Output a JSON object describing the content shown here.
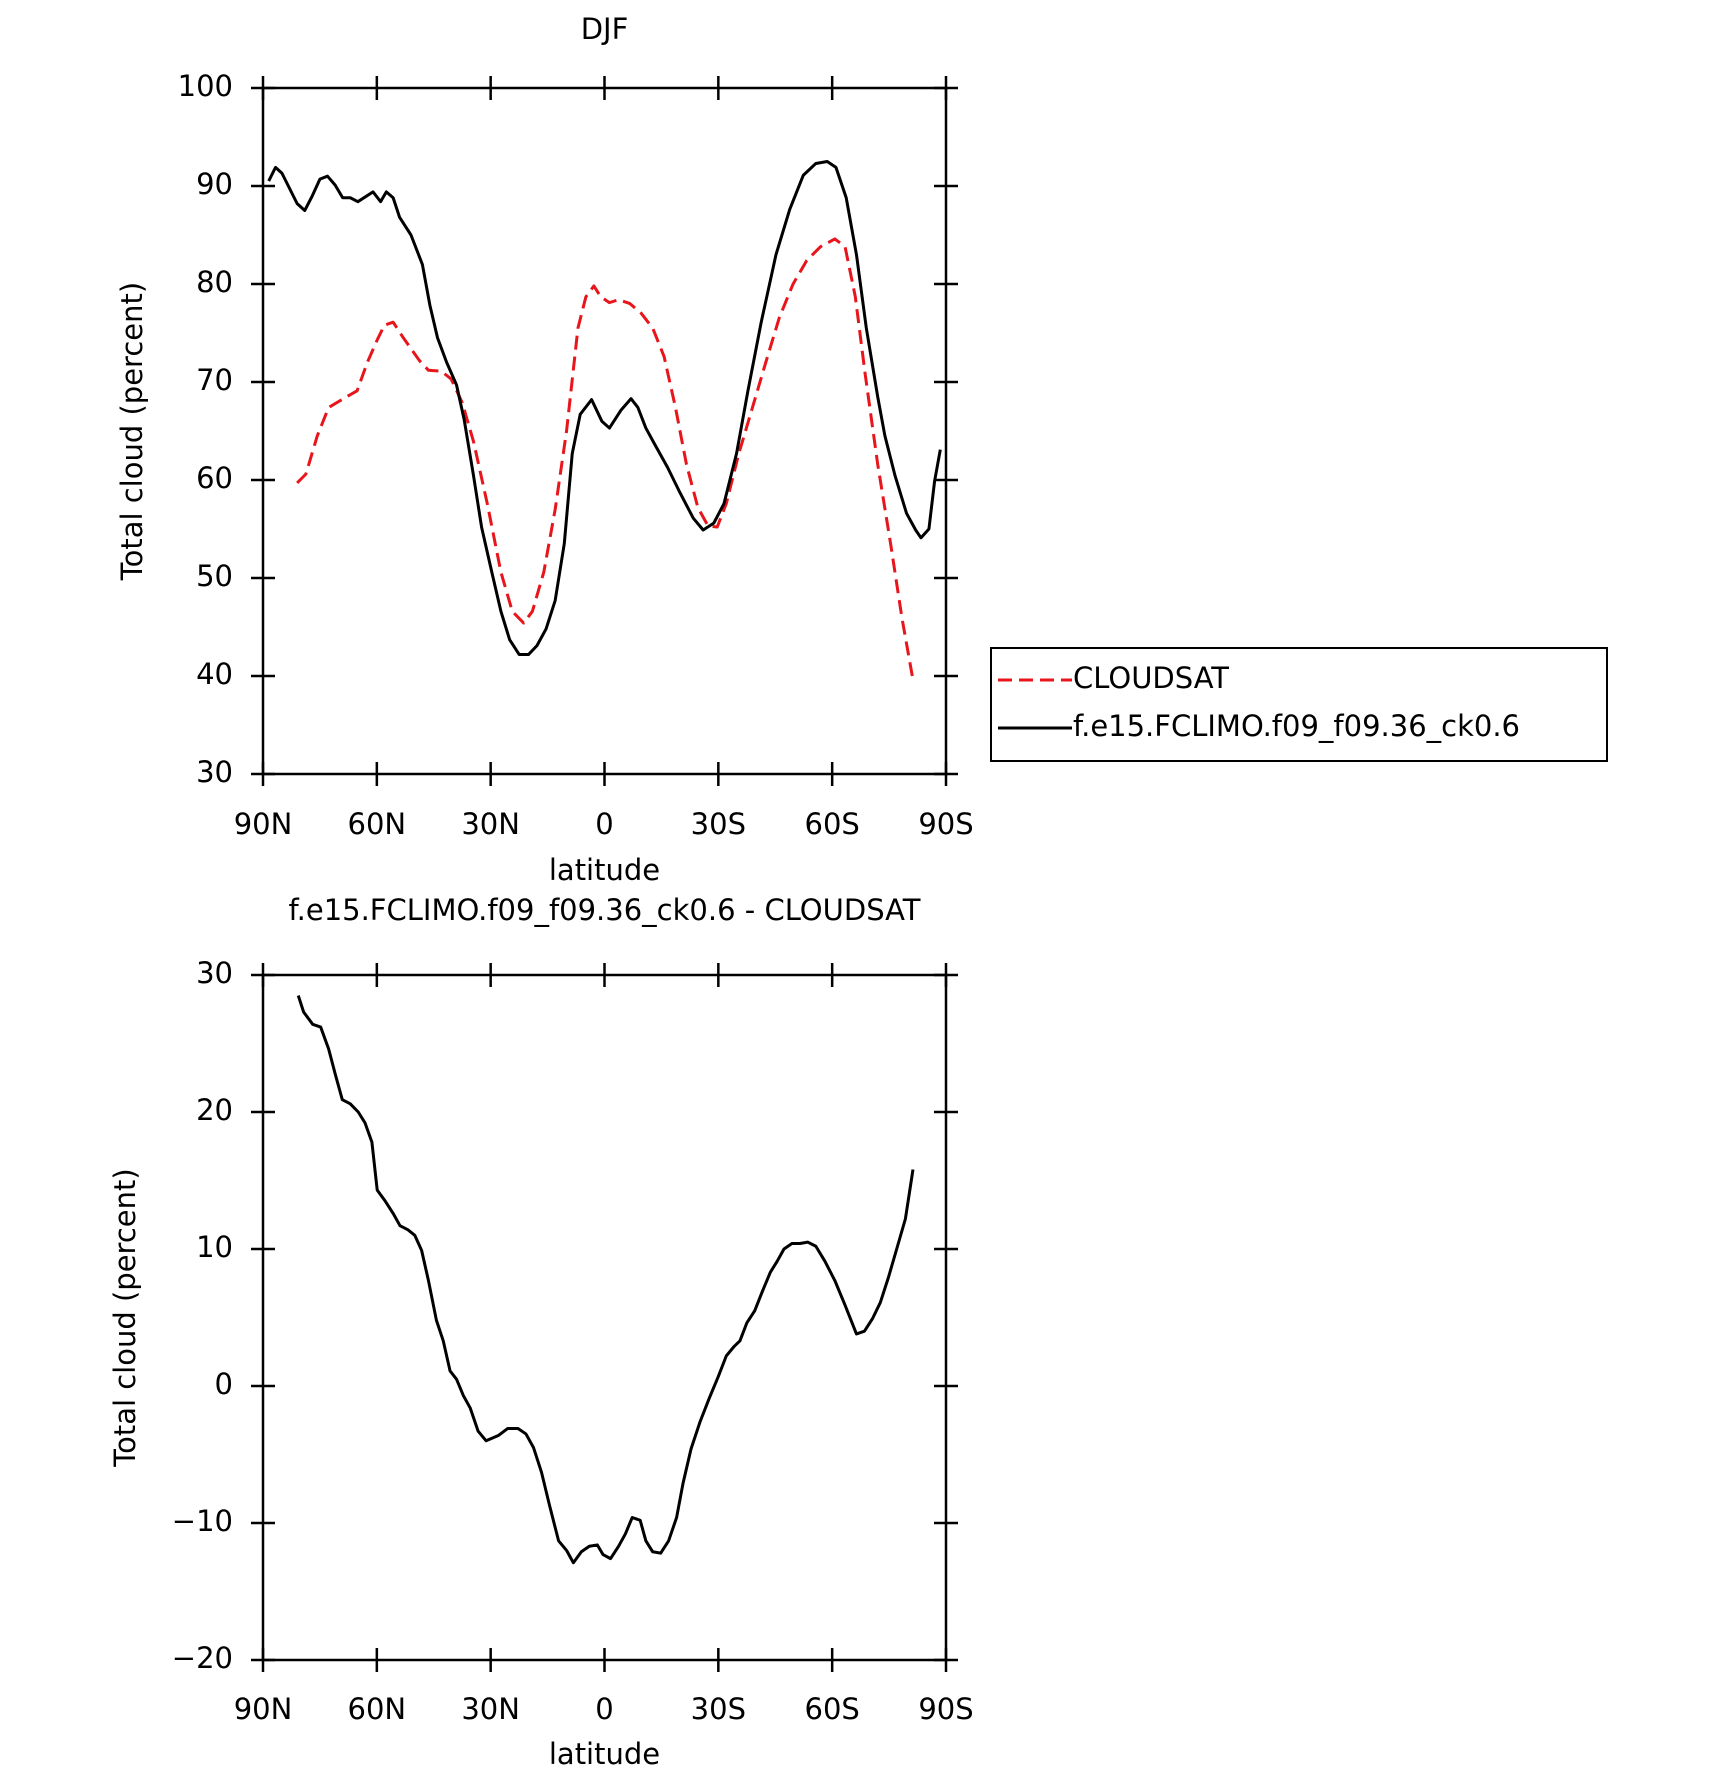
{
  "chart_data": [
    {
      "type": "line",
      "title": "DJF",
      "xlabel": "latitude",
      "ylabel": "Total cloud (percent)",
      "xlim": [
        90,
        -90
      ],
      "xticks": [
        {
          "value": 90,
          "label": "90N"
        },
        {
          "value": 60,
          "label": "60N"
        },
        {
          "value": 30,
          "label": "30N"
        },
        0,
        {
          "value": -30,
          "label": "30S"
        },
        {
          "value": -60,
          "label": "60S"
        },
        {
          "value": -90,
          "label": "90S"
        }
      ],
      "ylim": [
        30,
        100
      ],
      "yticks": [
        30,
        40,
        50,
        60,
        70,
        80,
        90,
        100
      ],
      "legend": "outside-right",
      "series": [
        {
          "name": "CLOUDSAT",
          "color": "#e8151b",
          "dash": true,
          "x": [
            81,
            78.7,
            75.7,
            72.7,
            68.8,
            65.2,
            62.5,
            59.9,
            58,
            55.7,
            53,
            48.8,
            46.4,
            43,
            40.4,
            37.5,
            34.5,
            30.9,
            27.3,
            24.3,
            21.3,
            19,
            16,
            13,
            10,
            7,
            4.9,
            2.8,
            1,
            -1.3,
            -3.7,
            -6.7,
            -9.7,
            -12.7,
            -15.7,
            -18.7,
            -21.6,
            -24.6,
            -27.3,
            -29.7,
            -32.1,
            -35.4,
            -39,
            -42.5,
            -46.1,
            -49.7,
            -53.3,
            -56.9,
            -60.7,
            -63.4,
            -66.1,
            -68.7,
            -72,
            -75.4,
            -78.4,
            -81.3
          ],
          "values": [
            59.7,
            60.6,
            64.5,
            67.4,
            68.3,
            69.1,
            72,
            74.3,
            75.8,
            76.1,
            74.5,
            72.2,
            71.2,
            71.1,
            70.3,
            67.9,
            63.9,
            57.6,
            50.6,
            46.6,
            45.4,
            46.6,
            50.6,
            57,
            65,
            75.5,
            78.7,
            79.8,
            78.7,
            78.1,
            78.4,
            78,
            77,
            75.5,
            72.6,
            67.4,
            61.6,
            57.2,
            55.3,
            55.2,
            57.6,
            62.7,
            67.4,
            72,
            76.6,
            80,
            82.4,
            83.8,
            84.6,
            83.8,
            78.7,
            70.8,
            61.6,
            53.5,
            45.9,
            39.6
          ]
        },
        {
          "name": "f.e15.FCLIMO.f09_f09.36_ck0.6",
          "color": "#000000",
          "dash": false,
          "x": [
            88.5,
            86.7,
            85,
            81,
            79,
            77,
            75,
            73,
            71,
            69,
            67,
            65,
            61,
            59,
            57.5,
            55.7,
            54,
            51,
            48,
            46,
            44,
            41.6,
            39,
            37,
            34.5,
            32.4,
            29.7,
            27.3,
            25,
            22.5,
            20,
            17.8,
            15.4,
            13,
            10.6,
            8.5,
            6.4,
            3.4,
            0.7,
            -1.3,
            -4.3,
            -7,
            -8.8,
            -10.9,
            -13.3,
            -16.6,
            -19.9,
            -23.4,
            -26,
            -28.8,
            -31.5,
            -34.8,
            -37.8,
            -41.3,
            -45.2,
            -48.8,
            -52.4,
            -55.7,
            -58.7,
            -61,
            -63.7,
            -66.4,
            -69,
            -72,
            -73.9,
            -76.6,
            -79.6,
            -82,
            -83.4,
            -85.5,
            -87,
            -88.5
          ],
          "values": [
            90.5,
            91.9,
            91.3,
            88.2,
            87.5,
            89,
            90.7,
            91,
            90.1,
            88.8,
            88.8,
            88.4,
            89.4,
            88.4,
            89.4,
            88.8,
            86.8,
            85,
            82,
            77.8,
            74.5,
            72,
            69.7,
            66.2,
            60.4,
            55.2,
            50.6,
            46.6,
            43.7,
            42.2,
            42.2,
            43.1,
            44.8,
            47.7,
            53.5,
            62.7,
            66.7,
            68.2,
            66,
            65.3,
            67.1,
            68.3,
            67.4,
            65.3,
            63.6,
            61.3,
            58.7,
            56.1,
            54.9,
            55.6,
            57.6,
            62.7,
            69.1,
            76.1,
            83,
            87.6,
            91.1,
            92.3,
            92.5,
            91.9,
            88.8,
            83,
            75.5,
            68.5,
            64.5,
            60.4,
            56.6,
            54.9,
            54.1,
            55,
            59.9,
            63.1
          ]
        }
      ]
    },
    {
      "type": "line",
      "title": "f.e15.FCLIMO.f09_f09.36_ck0.6 - CLOUDSAT",
      "xlabel": "latitude",
      "ylabel": "Total cloud (percent)",
      "xlim": [
        90,
        -90
      ],
      "xticks": [
        {
          "value": 90,
          "label": "90N"
        },
        {
          "value": 60,
          "label": "60N"
        },
        {
          "value": 30,
          "label": "30N"
        },
        0,
        {
          "value": -30,
          "label": "30S"
        },
        {
          "value": -60,
          "label": "60S"
        },
        {
          "value": -90,
          "label": "90S"
        }
      ],
      "ylim": [
        -20,
        30
      ],
      "yticks": [
        {
          "value": -20,
          "label": "−20"
        },
        {
          "value": -10,
          "label": "−10"
        },
        0,
        10,
        20,
        30
      ],
      "series": [
        {
          "color": "#000000",
          "dash": false,
          "x": [
            80.7,
            79.3,
            76.9,
            74.8,
            72.7,
            70.9,
            69.1,
            67,
            64.9,
            63.1,
            61.3,
            59.9,
            57.8,
            55.7,
            53.9,
            51.8,
            50,
            48.2,
            46.4,
            44.3,
            42.5,
            40.7,
            39,
            37.2,
            35.4,
            33.3,
            31.2,
            27.9,
            25.5,
            22.8,
            20.7,
            18.7,
            16.6,
            14.5,
            12.1,
            10,
            8.2,
            6.1,
            4,
            1.9,
            0.4,
            -1.6,
            -3.7,
            -5.5,
            -7.3,
            -9.4,
            -10.9,
            -12.7,
            -14.8,
            -16.9,
            -19,
            -20.7,
            -22.8,
            -25.2,
            -27.6,
            -30,
            -32.1,
            -34.2,
            -35.7,
            -37.5,
            -39.6,
            -41.6,
            -43.7,
            -45.5,
            -47.3,
            -49.4,
            -51.5,
            -53.6,
            -55.7,
            -58.1,
            -60.7,
            -63.4,
            -66.4,
            -68.5,
            -70.6,
            -72.7,
            -74.8,
            -76.9,
            -79.3,
            -81.3
          ],
          "values": [
            28.5,
            27.3,
            26.4,
            26.2,
            24.6,
            22.7,
            20.9,
            20.6,
            20,
            19.2,
            17.8,
            14.3,
            13.5,
            12.6,
            11.7,
            11.4,
            11,
            9.9,
            7.7,
            4.8,
            3.3,
            1.1,
            0.5,
            -0.7,
            -1.6,
            -3.3,
            -4,
            -3.6,
            -3.1,
            -3.1,
            -3.5,
            -4.5,
            -6.3,
            -8.7,
            -11.3,
            -12,
            -12.9,
            -12.1,
            -11.7,
            -11.6,
            -12.3,
            -12.6,
            -11.7,
            -10.8,
            -9.6,
            -9.8,
            -11.3,
            -12.1,
            -12.2,
            -11.3,
            -9.6,
            -7.1,
            -4.6,
            -2.6,
            -0.9,
            0.7,
            2.2,
            2.9,
            3.3,
            4.6,
            5.5,
            6.9,
            8.3,
            9.1,
            10,
            10.4,
            10.4,
            10.5,
            10.2,
            9.1,
            7.7,
            5.9,
            3.8,
            4,
            4.9,
            6.1,
            7.9,
            9.9,
            12.2,
            15.8
          ]
        }
      ]
    }
  ]
}
